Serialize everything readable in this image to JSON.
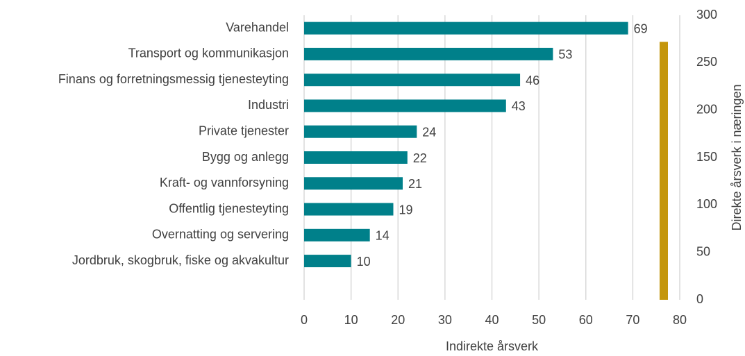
{
  "chart_data": [
    {
      "type": "hbar",
      "categories": [
        "Varehandel",
        "Transport og kommunikasjon",
        "Finans og forretningsmessig tjenesteyting",
        "Industri",
        "Private tjenester",
        "Bygg og anlegg",
        "Kraft- og vannforsyning",
        "Offentlig tjenesteyting",
        "Overnatting og servering",
        "Jordbruk, skogbruk, fiske og akvakultur"
      ],
      "values": [
        69,
        53,
        46,
        43,
        24,
        22,
        21,
        19,
        14,
        10
      ],
      "color": "#00808a",
      "xlim": [
        0,
        80
      ],
      "xticks": [
        0,
        10,
        20,
        30,
        40,
        50,
        60,
        70,
        80
      ],
      "xlabel": "Indirekte årsverk",
      "grid": true
    },
    {
      "type": "vbar",
      "values": [
        272
      ],
      "color": "#c4960c",
      "axis": "y2",
      "y2lim": [
        0,
        300
      ],
      "y2ticks": [
        0,
        50,
        100,
        150,
        200,
        250,
        300
      ],
      "y2label": "Direkte årsverk i næringen"
    }
  ]
}
